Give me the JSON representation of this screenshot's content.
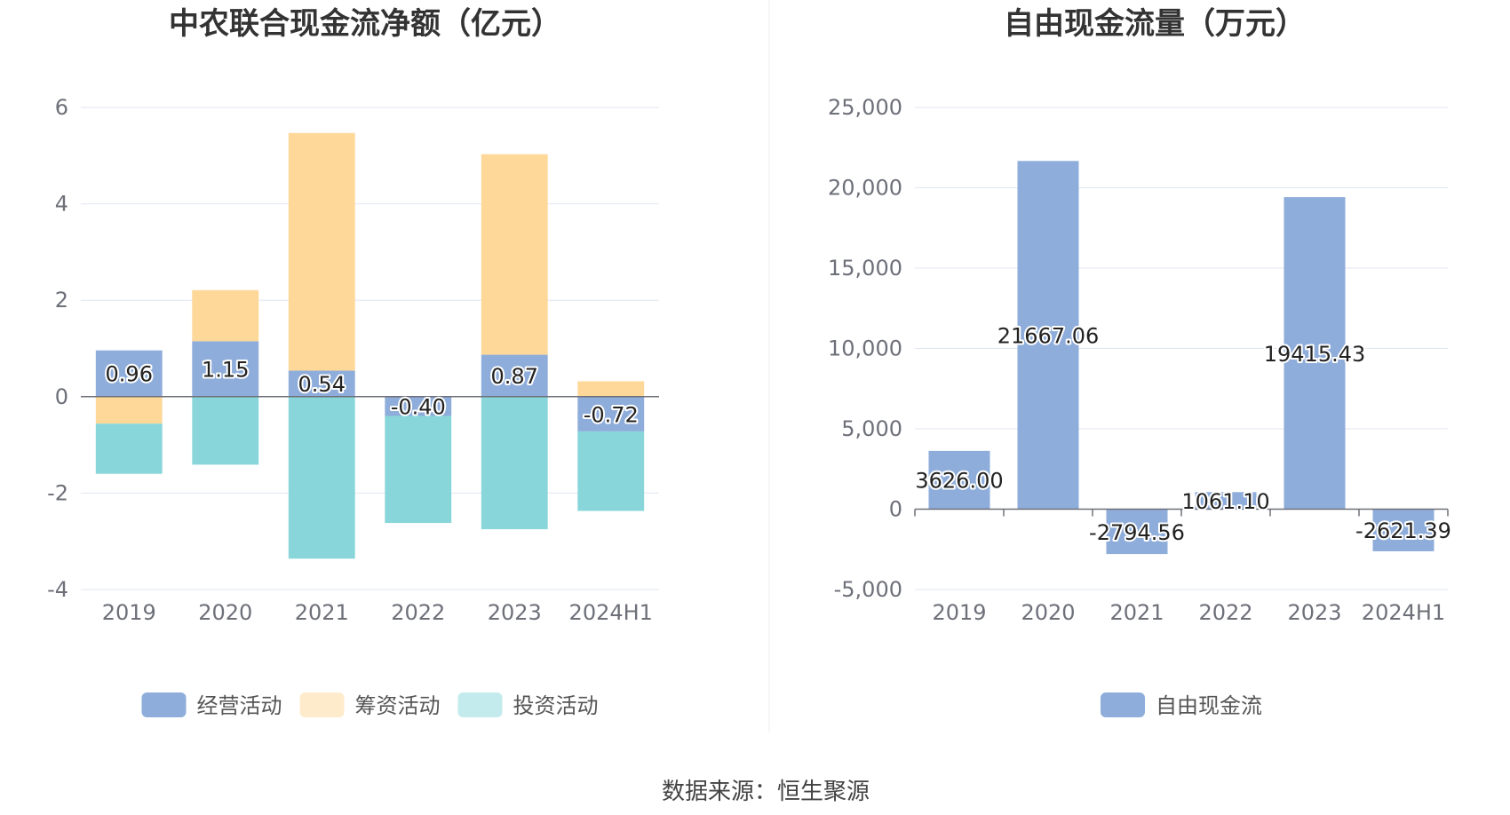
{
  "source_label": "数据来源：恒生聚源",
  "colors": {
    "operating": "#8eaddb",
    "financing": "#fed899",
    "investing": "#88d6da",
    "free_cash_flow": "#8eaddb",
    "grid": "#e0e6f1",
    "axis": "#6e7079"
  },
  "chart_data": [
    {
      "type": "bar",
      "stacked": true,
      "title": "中农联合现金流净额（亿元）",
      "categories": [
        "2019",
        "2020",
        "2021",
        "2022",
        "2023",
        "2024H1"
      ],
      "ylim": [
        -4,
        6
      ],
      "yticks": [
        -4,
        -2,
        0,
        2,
        4,
        6
      ],
      "ytick_labels": [
        "-4",
        "-2",
        "0",
        "2",
        "4",
        "6"
      ],
      "grid": true,
      "legend_position": "bottom",
      "series": [
        {
          "name": "经营活动",
          "color_key": "operating",
          "values": [
            0.96,
            1.15,
            0.54,
            -0.4,
            0.87,
            -0.72
          ],
          "labels": [
            "0.96",
            "1.15",
            "0.54",
            "-0.40",
            "0.87",
            "-0.72"
          ]
        },
        {
          "name": "筹资活动",
          "color_key": "financing",
          "values": [
            -0.56,
            1.06,
            4.93,
            0.0,
            4.16,
            0.32
          ]
        },
        {
          "name": "投资活动",
          "color_key": "investing",
          "values": [
            -1.04,
            -1.41,
            -3.36,
            -2.22,
            -2.75,
            -1.65
          ]
        }
      ]
    },
    {
      "type": "bar",
      "title": "自由现金流量（万元）",
      "categories": [
        "2019",
        "2020",
        "2021",
        "2022",
        "2023",
        "2024H1"
      ],
      "ylim": [
        -5000,
        25000
      ],
      "yticks": [
        -5000,
        0,
        5000,
        10000,
        15000,
        20000,
        25000
      ],
      "ytick_labels": [
        "-5,000",
        "0",
        "5,000",
        "10,000",
        "15,000",
        "20,000",
        "25,000"
      ],
      "grid": true,
      "legend_position": "bottom",
      "series": [
        {
          "name": "自由现金流",
          "color_key": "free_cash_flow",
          "values": [
            3626.0,
            21667.06,
            -2794.56,
            1061.1,
            19415.43,
            -2621.39
          ],
          "labels": [
            "3626.00",
            "21667.06",
            "-2794.56",
            "1061.10",
            "19415.43",
            "-2621.39"
          ]
        }
      ]
    }
  ]
}
